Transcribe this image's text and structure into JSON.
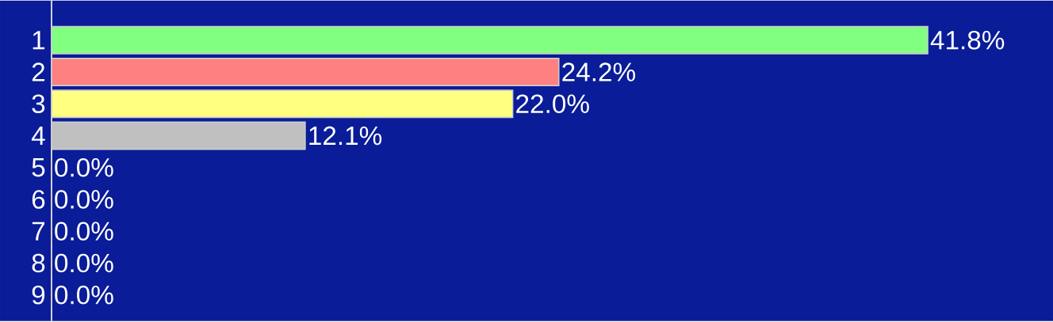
{
  "chart_data": {
    "type": "bar",
    "orientation": "horizontal",
    "categories": [
      "1",
      "2",
      "3",
      "4",
      "5",
      "6",
      "7",
      "8",
      "9"
    ],
    "values": [
      41.8,
      24.2,
      22.0,
      12.1,
      0.0,
      0.0,
      0.0,
      0.0,
      0.0
    ],
    "value_labels": [
      "41.8%",
      "24.2%",
      "22.0%",
      "12.1%",
      "0.0%",
      "0.0%",
      "0.0%",
      "0.0%",
      "0.0%"
    ],
    "colors": [
      "#80ff80",
      "#ff8080",
      "#ffff80",
      "#c0c0c0",
      "#c060c0",
      "#40a0a0",
      "#208020",
      "#a02020",
      "#40c080"
    ]
  }
}
